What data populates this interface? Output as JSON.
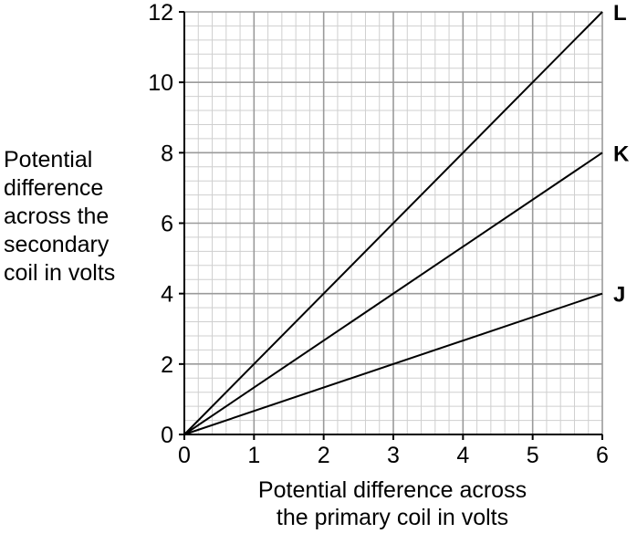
{
  "chart_data": {
    "type": "line",
    "xlabel_lines": [
      "Potential difference across",
      "the primary coil in volts"
    ],
    "ylabel_lines": [
      "Potential",
      "difference",
      "across the",
      "secondary",
      "coil in volts"
    ],
    "xlim": [
      0,
      6
    ],
    "ylim": [
      0,
      12
    ],
    "x_ticks": [
      0,
      1,
      2,
      3,
      4,
      5,
      6
    ],
    "y_ticks": [
      0,
      2,
      4,
      6,
      8,
      10,
      12
    ],
    "grid": {
      "major": true,
      "minor": true
    },
    "series": [
      {
        "name": "J",
        "x": [
          0,
          6
        ],
        "y": [
          0,
          4
        ]
      },
      {
        "name": "K",
        "x": [
          0,
          6
        ],
        "y": [
          0,
          8
        ]
      },
      {
        "name": "L",
        "x": [
          0,
          6
        ],
        "y": [
          0,
          12
        ]
      }
    ]
  }
}
